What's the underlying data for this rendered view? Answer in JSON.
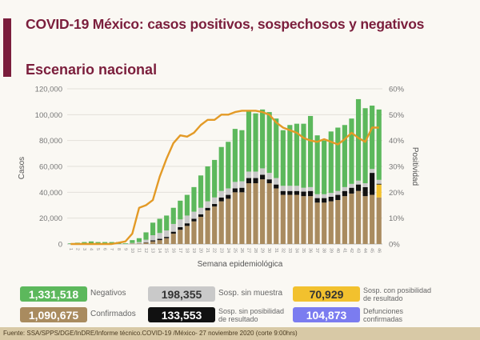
{
  "header": {
    "title": "COVID-19 México: casos positivos, sospechosos y negativos",
    "subtitle": "Escenario nacional"
  },
  "chart_data": {
    "type": "bar",
    "stacked": true,
    "xlabel": "Semana epidemiológica",
    "ylabel": "Casos",
    "y2label": "Positividad",
    "ylim": [
      0,
      120000
    ],
    "y2lim": [
      0,
      60
    ],
    "yticks": [
      "0",
      "20,000",
      "40,000",
      "60,000",
      "80,000",
      "100,000",
      "120,000"
    ],
    "y2ticks": [
      "0%",
      "10%",
      "20%",
      "30%",
      "40%",
      "50%",
      "60%"
    ],
    "grid": true,
    "categories": [
      "1",
      "2",
      "3",
      "4",
      "5",
      "6",
      "7",
      "8",
      "9",
      "10",
      "11",
      "12",
      "13",
      "14",
      "15",
      "16",
      "17",
      "18",
      "19",
      "20",
      "21",
      "22",
      "23",
      "24",
      "25",
      "26",
      "27",
      "28",
      "29",
      "30",
      "31",
      "32",
      "33",
      "34",
      "35",
      "36",
      "37",
      "38",
      "39",
      "40",
      "41",
      "42",
      "43",
      "44",
      "45",
      "46"
    ],
    "series": [
      {
        "name": "Confirmados",
        "color": "#a98b5f",
        "values": [
          0,
          0,
          0,
          0,
          0,
          0,
          0,
          0,
          0,
          300,
          500,
          1000,
          2000,
          3000,
          4500,
          8000,
          11000,
          14000,
          17500,
          21000,
          26000,
          29000,
          33000,
          35000,
          40000,
          40000,
          47000,
          47000,
          50000,
          47000,
          43000,
          38000,
          38000,
          38000,
          37000,
          37000,
          32000,
          32000,
          33000,
          34000,
          37000,
          39000,
          41000,
          37000,
          38000,
          36000
        ]
      },
      {
        "name": "Sosp. con posibilidad de resultado",
        "color": "#f2c12e",
        "values": [
          0,
          0,
          0,
          0,
          0,
          0,
          0,
          0,
          0,
          0,
          0,
          0,
          0,
          0,
          0,
          0,
          0,
          0,
          0,
          0,
          0,
          0,
          0,
          0,
          0,
          0,
          0,
          0,
          0,
          0,
          0,
          0,
          0,
          0,
          0,
          0,
          0,
          0,
          0,
          0,
          0,
          0,
          0,
          0,
          0,
          10000
        ]
      },
      {
        "name": "Sosp. sin posibilidad de resultado",
        "color": "#111111",
        "values": [
          0,
          0,
          0,
          0,
          0,
          0,
          0,
          0,
          0,
          0,
          0,
          300,
          800,
          1000,
          1000,
          1500,
          2000,
          2000,
          2000,
          2000,
          2000,
          2000,
          3000,
          3000,
          3000,
          3500,
          4000,
          4000,
          3500,
          3000,
          3000,
          3000,
          3000,
          3000,
          3500,
          4000,
          3500,
          3500,
          3500,
          4000,
          4000,
          4500,
          5000,
          7000,
          17000,
          600
        ]
      },
      {
        "name": "Sosp. sin muestra",
        "color": "#c9c9c9",
        "values": [
          0,
          0,
          0,
          0,
          0,
          0,
          0,
          0,
          0,
          500,
          1000,
          2000,
          4000,
          4500,
          5000,
          6000,
          6000,
          6000,
          5500,
          5000,
          5000,
          5000,
          5000,
          5000,
          5000,
          5000,
          5000,
          5000,
          5000,
          5000,
          5000,
          4000,
          4000,
          4000,
          3000,
          3000,
          3000,
          3000,
          3000,
          3000,
          3000,
          3000,
          3000,
          3000,
          3000,
          3000
        ]
      },
      {
        "name": "Negativos",
        "color": "#5cb85c",
        "values": [
          500,
          1000,
          1500,
          2000,
          1500,
          1500,
          1500,
          1500,
          500,
          2200,
          3000,
          5700,
          9700,
          11000,
          11500,
          12500,
          14500,
          16000,
          19000,
          25000,
          27000,
          29000,
          34000,
          36000,
          41000,
          39500,
          47000,
          45000,
          45500,
          47000,
          46000,
          43000,
          47000,
          48000,
          49500,
          55000,
          45500,
          41500,
          47500,
          49000,
          48000,
          50500,
          63000,
          58000,
          49000,
          54400
        ]
      }
    ],
    "line": {
      "name": "Positividad",
      "color": "#e39a26",
      "axis": "y2",
      "values": [
        0,
        0,
        0,
        0,
        0,
        0,
        0,
        0.5,
        1,
        4,
        14,
        15,
        17,
        26,
        33,
        39,
        42,
        41.5,
        43,
        46,
        48,
        48,
        50,
        50,
        51,
        51.5,
        51.5,
        51.5,
        51,
        50,
        47,
        45,
        44,
        43,
        41,
        40,
        39.5,
        40.5,
        39.5,
        38.5,
        40.5,
        43,
        41,
        39.5,
        45,
        45
      ]
    }
  },
  "legend": [
    {
      "value": "1,331,518",
      "label": "Negativos",
      "color": "#5cb85c",
      "text_color": "#ffffff"
    },
    {
      "value": "198,355",
      "label": "Sosp. sin muestra",
      "color": "#c9c9c9",
      "text_color": "#333333"
    },
    {
      "value": "70,929",
      "label": "Sosp. con posibilidad de resultado",
      "color": "#f2c12e",
      "text_color": "#333333"
    },
    {
      "value": "1,090,675",
      "label": "Confirmados",
      "color": "#a98b5f",
      "text_color": "#ffffff"
    },
    {
      "value": "133,553",
      "label": "Sosp. sin posibilidad de resultado",
      "color": "#111111",
      "text_color": "#ffffff"
    },
    {
      "value": "104,873",
      "label": "Defunciones confirmadas",
      "color": "#7b7cf0",
      "text_color": "#ffffff"
    }
  ],
  "footer": "Fuente: SSA/SPPS/DGE/InDRE/Informe técnico.COVID-19 /México- 27 noviembre 2020 (corte 9:00hrs)"
}
